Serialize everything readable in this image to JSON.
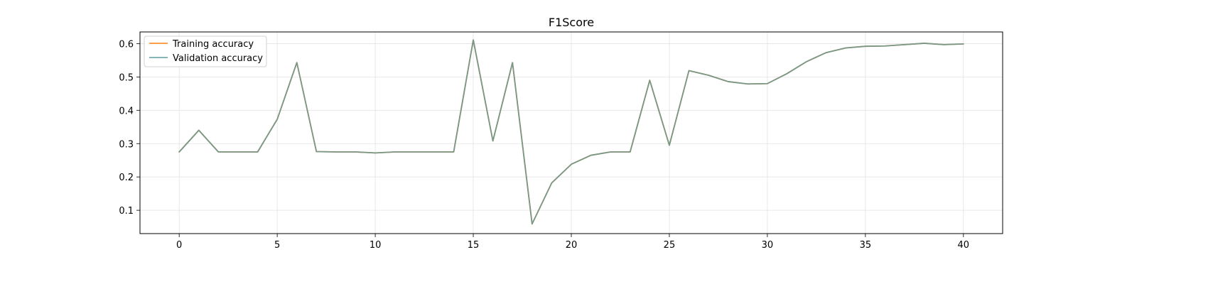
{
  "chart_data": {
    "type": "line",
    "title": "F1Score",
    "xlabel": "",
    "ylabel": "",
    "xlim": [
      -2,
      42
    ],
    "ylim": [
      0.03,
      0.635
    ],
    "xticks": [
      0,
      5,
      10,
      15,
      20,
      25,
      30,
      35,
      40
    ],
    "yticks": [
      0.1,
      0.2,
      0.3,
      0.4,
      0.5,
      0.6
    ],
    "grid": true,
    "legend_position": "top-left",
    "x": [
      0,
      1,
      2,
      3,
      4,
      5,
      6,
      7,
      8,
      9,
      10,
      11,
      12,
      13,
      14,
      15,
      16,
      17,
      18,
      19,
      20,
      21,
      22,
      23,
      24,
      25,
      26,
      27,
      28,
      29,
      30,
      31,
      32,
      33,
      34,
      35,
      36,
      37,
      38,
      39,
      40
    ],
    "series": [
      {
        "name": "Training accuracy",
        "color": "#ff7f0e",
        "values": [
          0.275,
          0.34,
          0.275,
          0.275,
          0.275,
          0.373,
          0.543,
          0.276,
          0.275,
          0.275,
          0.272,
          0.275,
          0.275,
          0.275,
          0.275,
          0.611,
          0.308,
          0.543,
          0.059,
          0.182,
          0.238,
          0.265,
          0.275,
          0.275,
          0.49,
          0.295,
          0.519,
          0.505,
          0.486,
          0.479,
          0.48,
          0.51,
          0.546,
          0.573,
          0.587,
          0.592,
          0.593,
          0.597,
          0.601,
          0.597,
          0.599
        ]
      },
      {
        "name": "Validation accuracy",
        "color": "#5f9ea0",
        "values": [
          0.275,
          0.34,
          0.275,
          0.275,
          0.275,
          0.373,
          0.543,
          0.276,
          0.275,
          0.275,
          0.272,
          0.275,
          0.275,
          0.275,
          0.275,
          0.611,
          0.308,
          0.543,
          0.059,
          0.182,
          0.238,
          0.265,
          0.275,
          0.275,
          0.49,
          0.295,
          0.519,
          0.505,
          0.486,
          0.479,
          0.48,
          0.51,
          0.546,
          0.573,
          0.587,
          0.592,
          0.593,
          0.597,
          0.601,
          0.597,
          0.599
        ]
      }
    ]
  }
}
